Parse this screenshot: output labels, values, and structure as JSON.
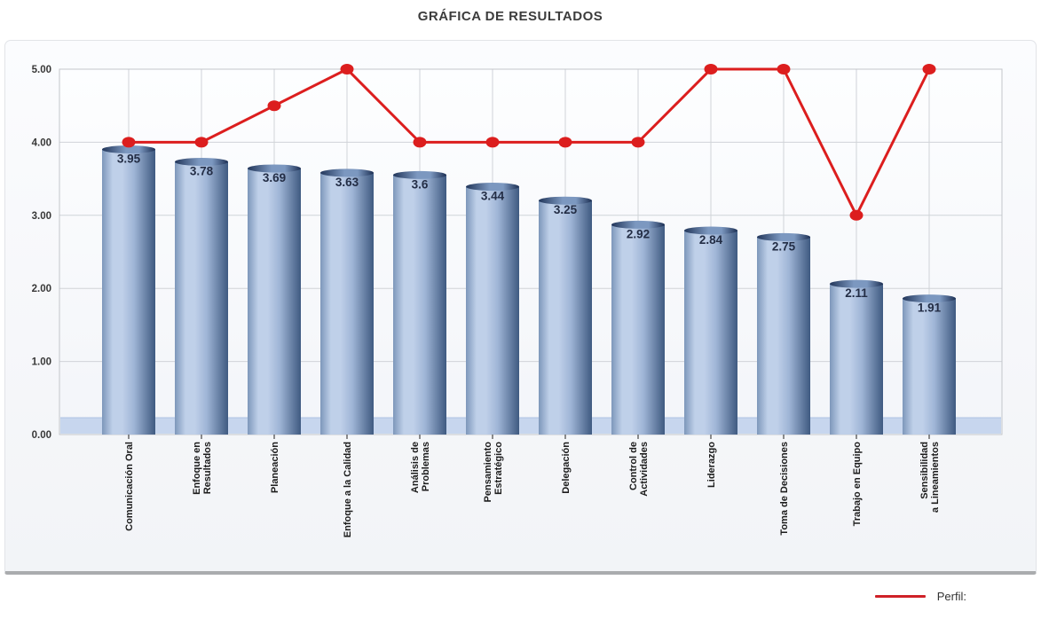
{
  "header": {
    "title": "GRÁFICA DE RESULTADOS"
  },
  "legend": {
    "label": "Perfil:",
    "swatch_color": "#cf2127"
  },
  "chart_data": {
    "type": "bar",
    "title": "GRÁFICA DE RESULTADOS",
    "categories": [
      "Comunicación Oral",
      "Enfoque en Resultados",
      "Planeación",
      "Enfoque a la Calidad",
      "Análisis de Problemas",
      "Pensamiento Estratégico",
      "Delegación",
      "Control de Actividades",
      "Liderazgo",
      "Toma de Decisiones",
      "Trabajo en Equipo",
      "Sensibilidad a Lineamientos"
    ],
    "category_lines": [
      [
        "Comunicación Oral"
      ],
      [
        "Enfoque en",
        "Resultados"
      ],
      [
        "Planeación"
      ],
      [
        "Enfoque a la Calidad"
      ],
      [
        "Análisis de",
        "Problemas"
      ],
      [
        "Pensamiento",
        "Estratégico"
      ],
      [
        "Delegación"
      ],
      [
        "Control de",
        "Actividades"
      ],
      [
        "Liderazgo"
      ],
      [
        "Toma de Decisiones"
      ],
      [
        "Trabajo en Equipo"
      ],
      [
        "Sensibilidad",
        "a Lineamientos"
      ]
    ],
    "series": [
      {
        "name": "",
        "type": "bar",
        "values": [
          3.95,
          3.78,
          3.69,
          3.63,
          3.6,
          3.44,
          3.25,
          2.92,
          2.84,
          2.75,
          2.11,
          1.91
        ],
        "value_labels": [
          "3.95",
          "3.78",
          "3.69",
          "3.63",
          "3.6",
          "3.44",
          "3.25",
          "2.92",
          "2.84",
          "2.75",
          "2.11",
          "1.91"
        ]
      },
      {
        "name": "Perfil",
        "type": "line",
        "values": [
          4,
          4,
          4.5,
          5,
          4,
          4,
          4,
          4,
          5,
          5,
          3,
          5
        ],
        "color": "#dc1e1e"
      }
    ],
    "xlabel": "",
    "ylabel": "",
    "ylim": [
      0,
      5
    ],
    "y_ticks": [
      "0.00",
      "1.00",
      "2.00",
      "3.00",
      "4.00",
      "5.00"
    ],
    "grid": true,
    "legend_position": "bottom-right",
    "colors": {
      "line": "#dc1e1e",
      "bar_body_left": "#7d97ba",
      "bar_body_light": "#bfd0e9",
      "bar_body_mid": "#9fb5d6",
      "bar_body_dark": "#3f5a81",
      "cap_dark": "#22365a",
      "cap_light": "#7c98c0",
      "cap_end": "#1d3054",
      "floor": "#c7d6ee",
      "floor_edge": "#aec2e3",
      "value_label": "#232d45",
      "axis_text": "#383838",
      "gridline": "#d0d3d8",
      "plot_border": "#c3c6cb"
    }
  }
}
